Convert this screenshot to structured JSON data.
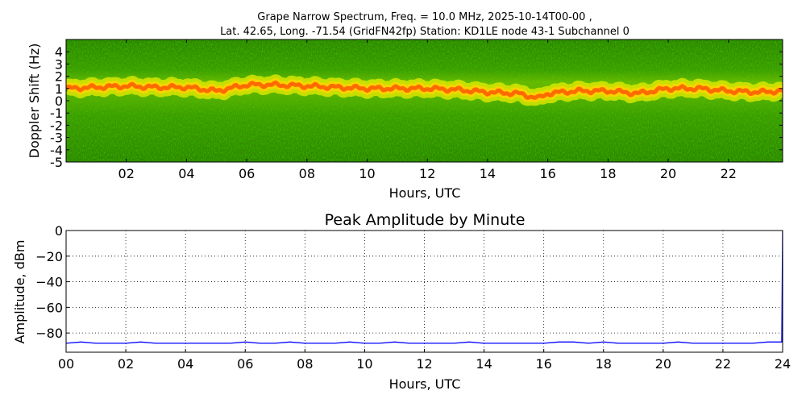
{
  "figure": {
    "title_line1": "Grape Narrow Spectrum, Freq. = 10.0 MHz, 2025-10-14T00-00 ,",
    "title_line2": "Lat.  42.65, Long. -71.54 (GridFN42fp) Station: KD1LE node 43-1 Subchannel 0"
  },
  "colors": {
    "spectrogram_background": "#2f8f00",
    "spectrogram_dark": "#1f6a00",
    "signal_core": "#ff6a00",
    "signal_halo": "#f2f200",
    "amplitude_line": "#0000ff"
  },
  "chart_data": [
    {
      "type": "heatmap",
      "title": "",
      "xlabel": "Hours, UTC",
      "ylabel": "Doppler Shift (Hz)",
      "xlim": [
        0,
        23.8
      ],
      "ylim": [
        -5,
        5
      ],
      "x_ticks": [
        "02",
        "04",
        "06",
        "08",
        "10",
        "12",
        "14",
        "16",
        "18",
        "20",
        "22"
      ],
      "y_ticks": [
        "4",
        "3",
        "2",
        "1",
        "0",
        "-1",
        "-2",
        "-3",
        "-4",
        "-5"
      ],
      "grid": false,
      "peak_doppler_trace": {
        "hours": [
          0,
          1,
          2,
          3,
          4,
          5,
          6,
          7,
          8,
          9,
          10,
          11,
          12,
          13,
          14,
          15,
          15.7,
          16,
          17,
          18,
          19,
          20,
          21,
          22,
          23,
          23.8
        ],
        "hz": [
          1.0,
          1.1,
          1.2,
          1.1,
          1.1,
          0.8,
          1.3,
          1.3,
          1.2,
          1.1,
          1.0,
          1.0,
          1.0,
          0.9,
          0.7,
          0.6,
          0.2,
          0.6,
          0.8,
          0.8,
          0.6,
          1.0,
          1.0,
          0.8,
          0.7,
          0.8
        ]
      }
    },
    {
      "type": "line",
      "title": "Peak Amplitude by Minute",
      "xlabel": "Hours, UTC",
      "ylabel": "Amplitude, dBm",
      "xlim": [
        0,
        24
      ],
      "ylim": [
        -95,
        0
      ],
      "x_ticks": [
        "00",
        "02",
        "04",
        "06",
        "08",
        "10",
        "12",
        "14",
        "16",
        "18",
        "20",
        "22",
        "24"
      ],
      "y_ticks": [
        "0",
        "−20",
        "−40",
        "−60",
        "−80"
      ],
      "grid": true,
      "series": [
        {
          "x": [
            0,
            0.5,
            1,
            1.5,
            2,
            2.5,
            3,
            3.5,
            4,
            4.5,
            5,
            5.5,
            6,
            6.5,
            7,
            7.5,
            8,
            8.5,
            9,
            9.5,
            10,
            10.5,
            11,
            11.5,
            12,
            12.5,
            13,
            13.5,
            14,
            14.5,
            15,
            15.5,
            16,
            16.5,
            17,
            17.5,
            18,
            18.5,
            19,
            19.5,
            20,
            20.5,
            21,
            21.5,
            22,
            22.5,
            23,
            23.5,
            23.97,
            24
          ],
          "values": [
            -88,
            -87,
            -88,
            -88,
            -88,
            -87,
            -88,
            -88,
            -88,
            -88,
            -88,
            -88,
            -87,
            -88,
            -88,
            -87,
            -88,
            -88,
            -88,
            -87,
            -88,
            -88,
            -87,
            -88,
            -88,
            -88,
            -88,
            -87,
            -88,
            -88,
            -88,
            -88,
            -88,
            -87,
            -87,
            -88,
            -87,
            -88,
            -88,
            -88,
            -88,
            -87,
            -88,
            -88,
            -88,
            -88,
            -88,
            -87,
            -87,
            0
          ]
        }
      ]
    }
  ]
}
